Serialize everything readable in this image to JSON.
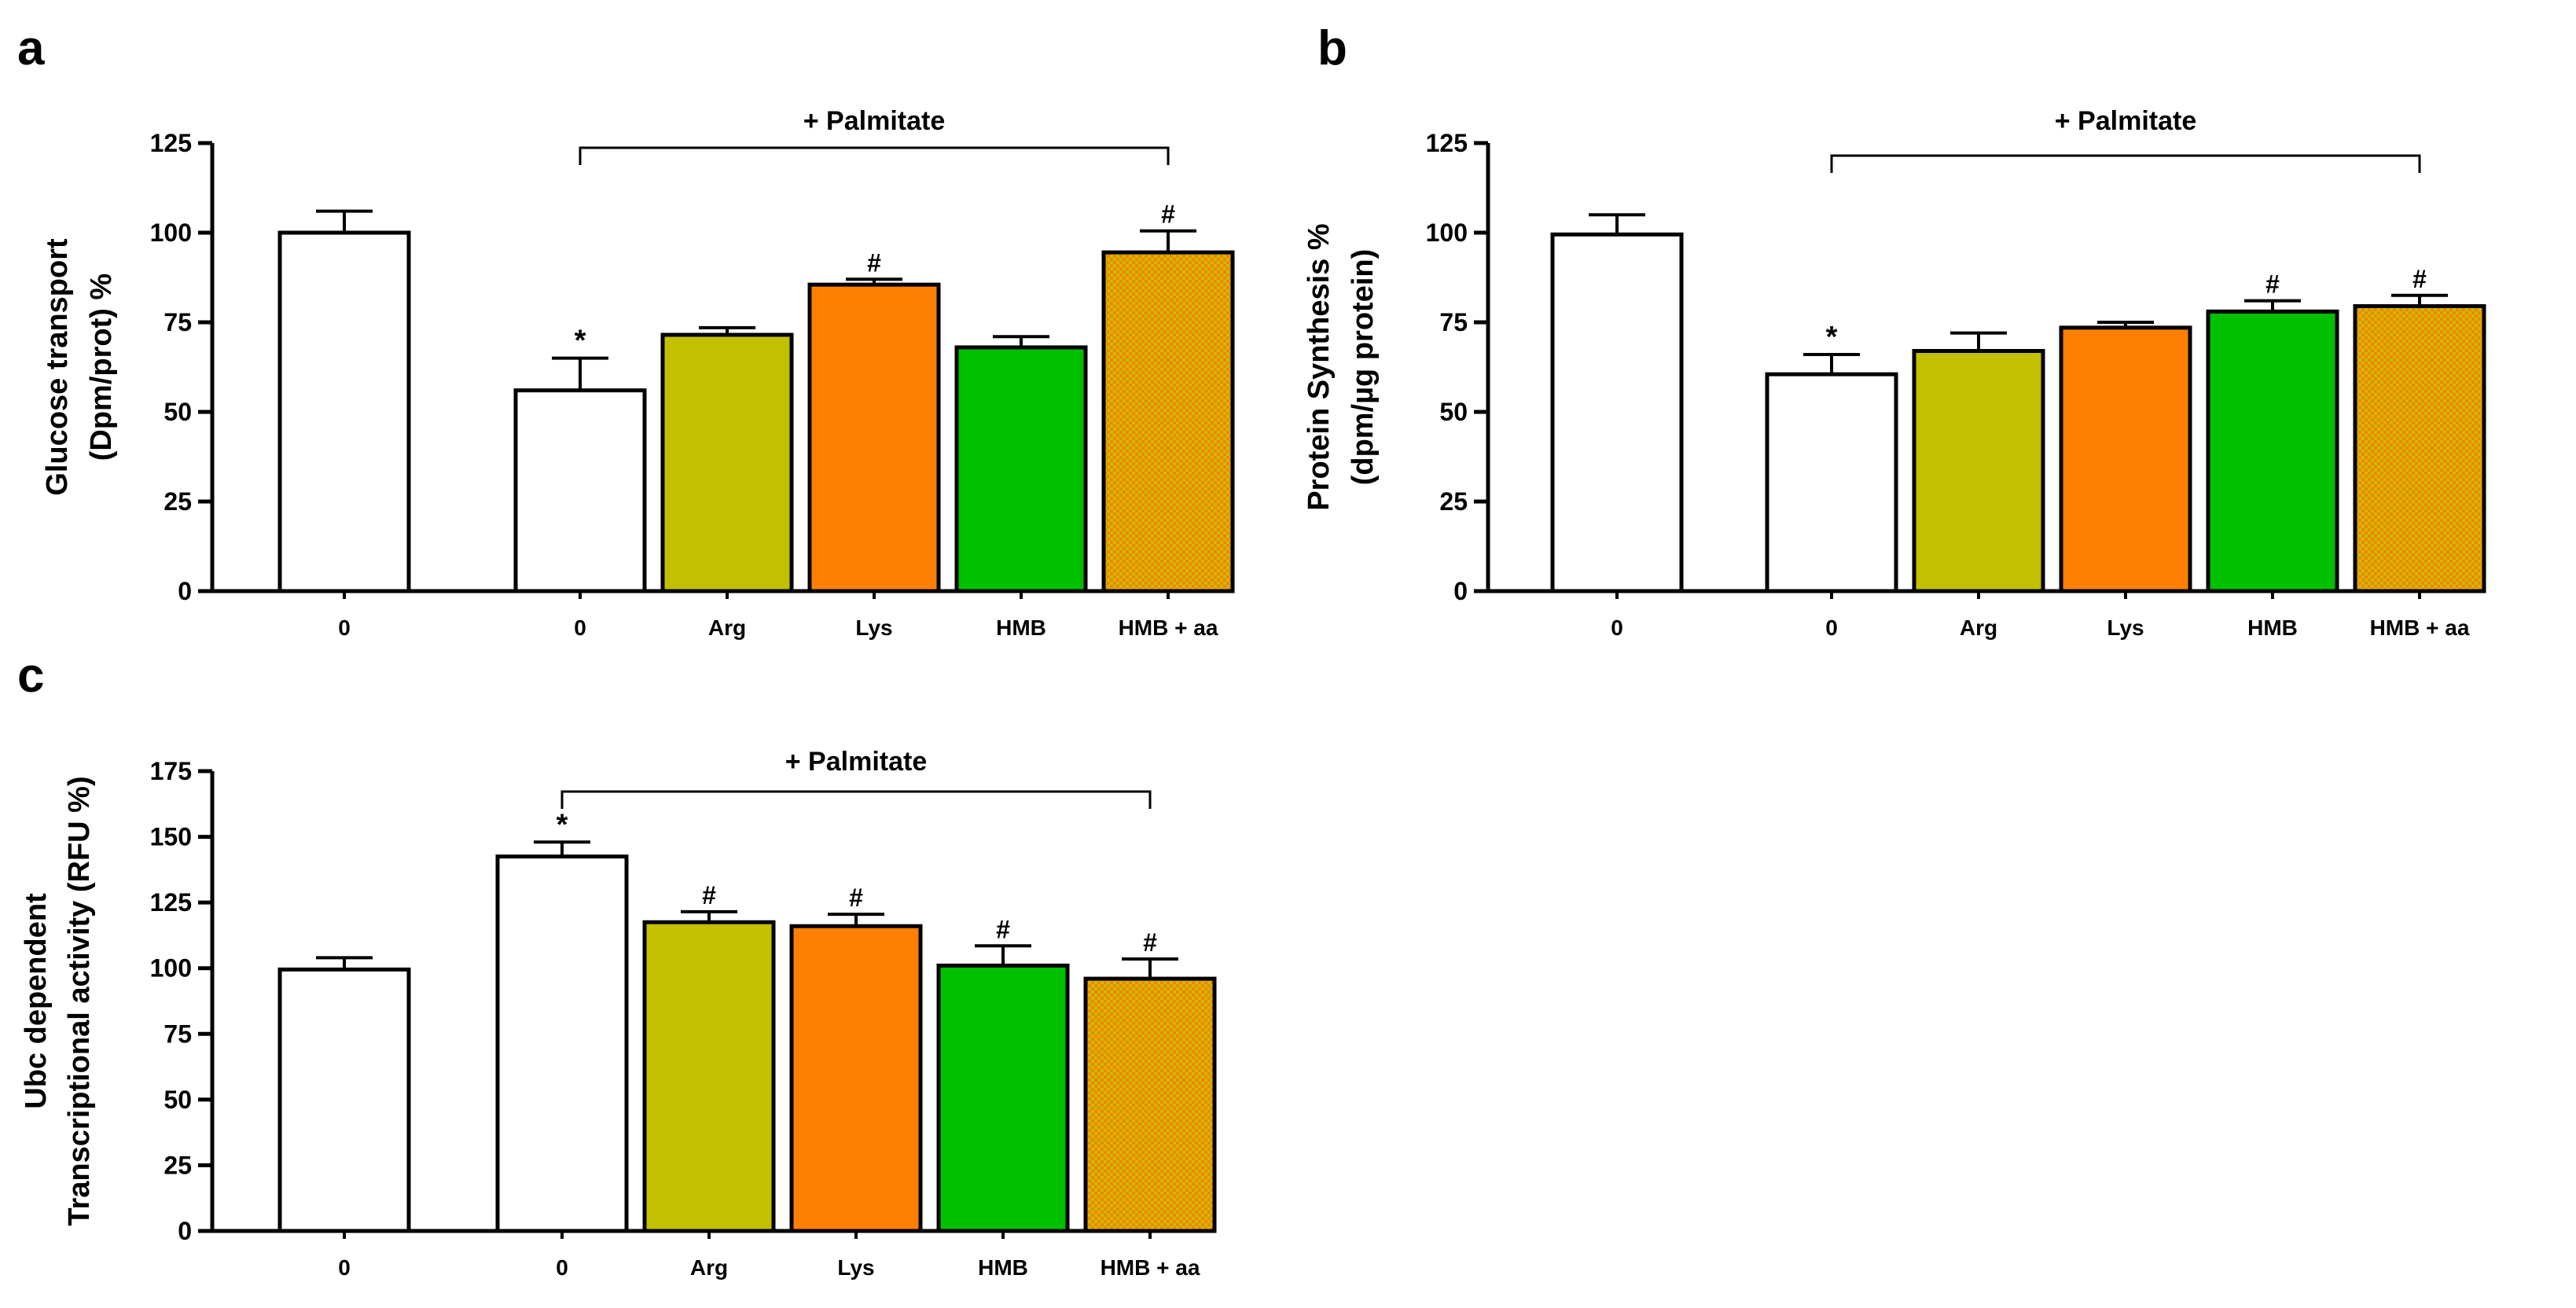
{
  "colors": {
    "control": "#ffffff",
    "arg": "#c2c000",
    "lys": "#ff8000",
    "hmb": "#00c000",
    "hmb_aa_a": "#ff8000",
    "hmb_aa_b": "#c2c000",
    "outline": "#000000"
  },
  "chart_data": [
    {
      "panel": "a",
      "type": "bar",
      "title": "",
      "ylabel": [
        "Glucose transport",
        "(Dpm/prot) %"
      ],
      "xlabel": "",
      "ylim": [
        0,
        125
      ],
      "yticks": [
        0,
        25,
        50,
        75,
        100,
        125
      ],
      "bracket_label": "+ Palmitate",
      "bracket_span": [
        1,
        5
      ],
      "categories": [
        "0",
        "0",
        "Arg",
        "Lys",
        "HMB",
        "HMB + aa"
      ],
      "values": [
        100,
        56,
        71.5,
        85.5,
        68,
        94.5
      ],
      "errors": [
        6,
        9,
        2,
        1.5,
        3,
        6
      ],
      "annotations": [
        "",
        "*",
        "",
        "#",
        "",
        "#"
      ],
      "fills": [
        "control",
        "control",
        "arg",
        "lys",
        "hmb",
        "hmb_aa"
      ]
    },
    {
      "panel": "b",
      "type": "bar",
      "title": "",
      "ylabel": [
        "Protein Synthesis %",
        "(dpm/µg protein)"
      ],
      "xlabel": "",
      "ylim": [
        0,
        125
      ],
      "yticks": [
        0,
        25,
        50,
        75,
        100,
        125
      ],
      "bracket_label": "+ Palmitate",
      "bracket_span": [
        1,
        5
      ],
      "categories": [
        "0",
        "0",
        "Arg",
        "Lys",
        "HMB",
        "HMB + aa"
      ],
      "values": [
        99.5,
        60.5,
        67,
        73.5,
        78,
        79.5
      ],
      "errors": [
        5.5,
        5.5,
        5,
        1.5,
        3,
        3
      ],
      "annotations": [
        "",
        "*",
        "",
        "",
        "#",
        "#"
      ],
      "fills": [
        "control",
        "control",
        "arg",
        "lys",
        "hmb",
        "hmb_aa"
      ]
    },
    {
      "panel": "c",
      "type": "bar",
      "title": "",
      "ylabel": [
        "Ubc dependent",
        "Transcriptional activity (RFU %)"
      ],
      "xlabel": "",
      "ylim": [
        0,
        175
      ],
      "yticks": [
        0,
        25,
        50,
        75,
        100,
        125,
        150,
        175
      ],
      "bracket_label": "+ Palmitate",
      "bracket_span": [
        1,
        5
      ],
      "categories": [
        "0",
        "0",
        "Arg",
        "Lys",
        "HMB",
        "HMB + aa"
      ],
      "values": [
        99.5,
        142.5,
        117.5,
        116,
        101,
        96
      ],
      "errors": [
        4.5,
        5.5,
        4,
        4.5,
        7.5,
        7.5
      ],
      "annotations": [
        "",
        "*",
        "#",
        "#",
        "#",
        "#"
      ],
      "fills": [
        "control",
        "control",
        "arg",
        "lys",
        "hmb",
        "hmb_aa"
      ]
    }
  ]
}
